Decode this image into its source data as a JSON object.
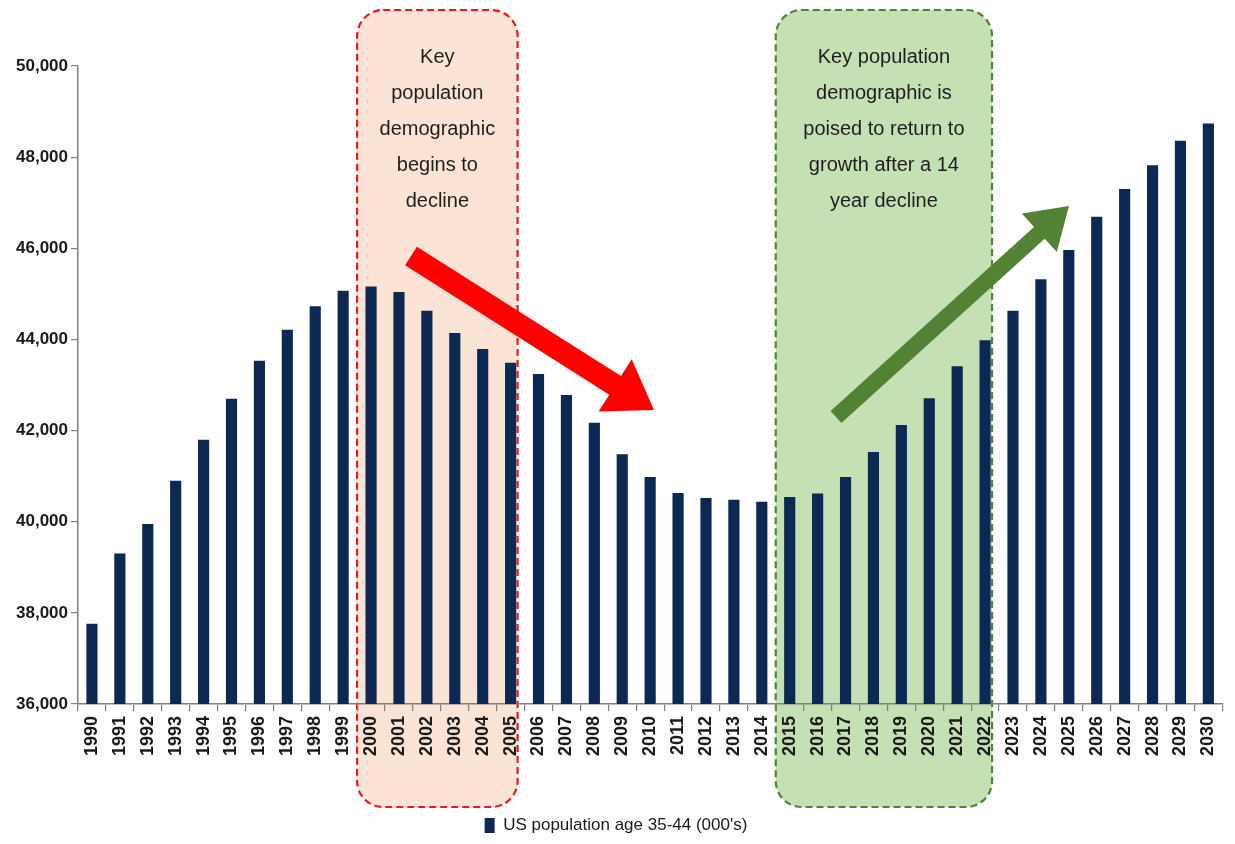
{
  "chart_data": {
    "type": "bar",
    "categories": [
      "1990",
      "1991",
      "1992",
      "1993",
      "1994",
      "1995",
      "1996",
      "1997",
      "1998",
      "1999",
      "2000",
      "2001",
      "2002",
      "2003",
      "2004",
      "2005",
      "2006",
      "2007",
      "2008",
      "2009",
      "2010",
      "2011",
      "2012",
      "2013",
      "2014",
      "2015",
      "2016",
      "2017",
      "2018",
      "2019",
      "2020",
      "2021",
      "2022",
      "2023",
      "2024",
      "2025",
      "2026",
      "2027",
      "2028",
      "2029",
      "2030"
    ],
    "series": [
      {
        "name": "US population age 35-44 (000's)",
        "color": "#0c2853",
        "values": [
          37760,
          39300,
          39950,
          40900,
          41800,
          42700,
          43530,
          44210,
          44730,
          45070,
          45160,
          45040,
          44630,
          44140,
          43790,
          43490,
          43240,
          42780,
          42170,
          41480,
          40980,
          40630,
          40520,
          40480,
          40440,
          40540,
          40620,
          40980,
          41530,
          42120,
          42710,
          43410,
          43980,
          44630,
          45320,
          45960,
          46690,
          47300,
          47820,
          48360,
          48740
        ]
      }
    ],
    "ylim": [
      36000,
      50000
    ],
    "yticks": [
      {
        "value": 36000,
        "label": "36,000"
      },
      {
        "value": 38000,
        "label": "38,000"
      },
      {
        "value": 40000,
        "label": "40,000"
      },
      {
        "value": 42000,
        "label": "42,000"
      },
      {
        "value": 44000,
        "label": "44,000"
      },
      {
        "value": 46000,
        "label": "46,000"
      },
      {
        "value": 48000,
        "label": "48,000"
      },
      {
        "value": 50000,
        "label": "50,000"
      }
    ],
    "legend": "bottom",
    "bands": [
      {
        "axis": "x",
        "from": "2000",
        "to": "2005",
        "label": "Key population demographic begins to decline",
        "color": "#fbe4d6"
      },
      {
        "axis": "x",
        "from": "2015",
        "to": "2022",
        "label": "Key population demographic is poised to return to growth after a 14 year decline",
        "color": "#c5e0b4"
      }
    ]
  }
}
